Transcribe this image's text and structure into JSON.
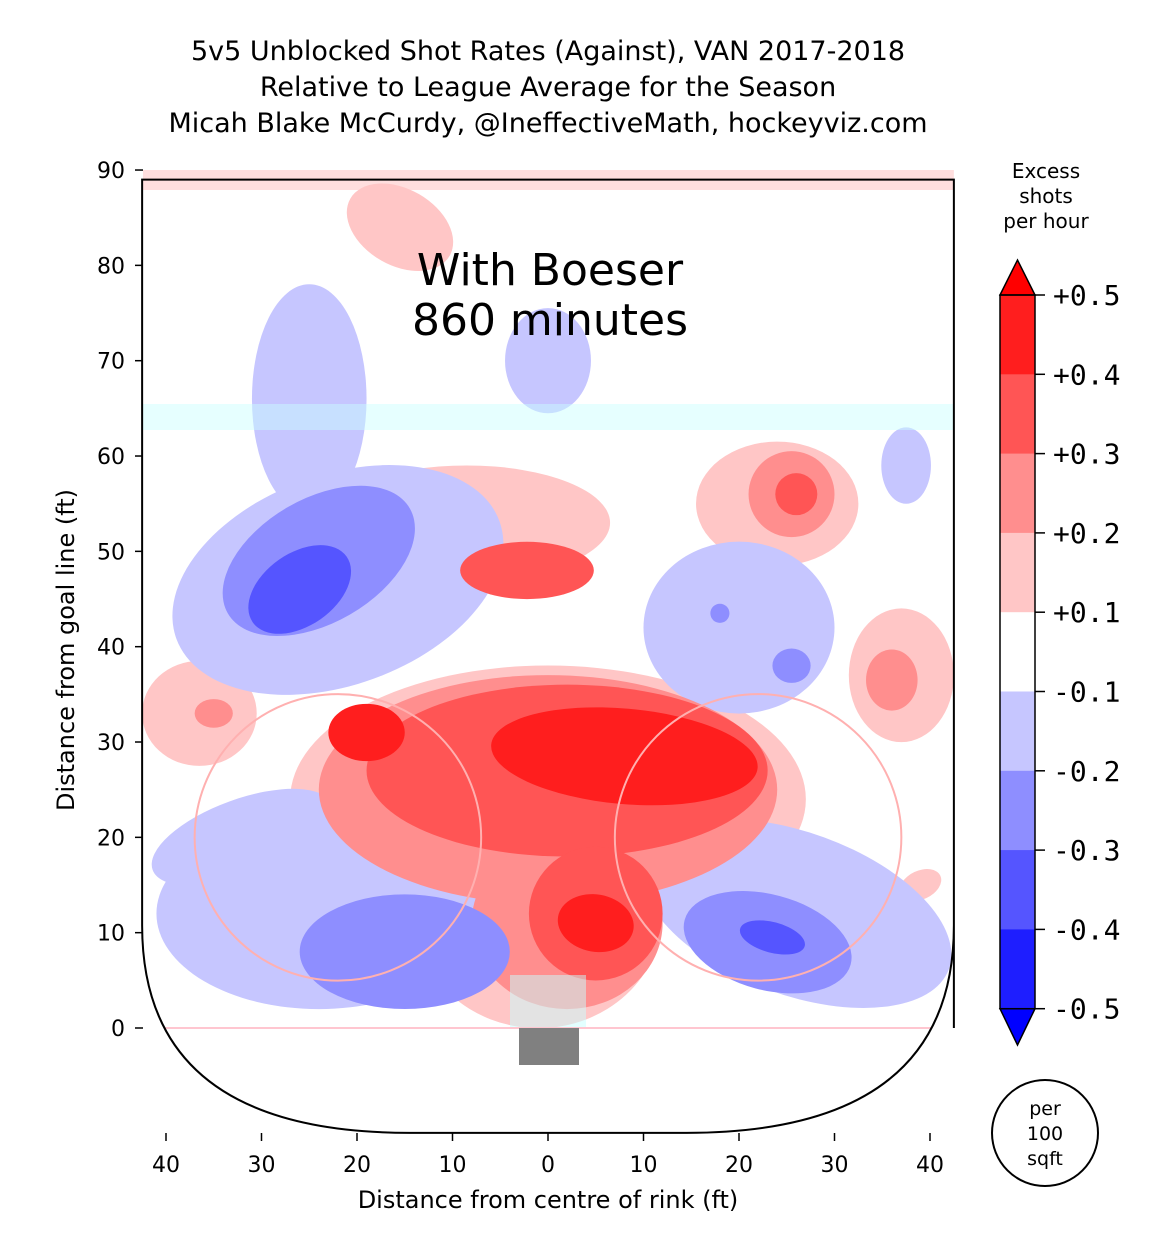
{
  "chart_data": {
    "type": "heatmap",
    "title": [
      "5v5 Unblocked Shot Rates (Against), VAN 2017-2018",
      "Relative to League Average for the Season",
      "Micah Blake McCurdy, @IneffectiveMath, hockeyviz.com"
    ],
    "annotation": [
      "With Boeser",
      "860 minutes"
    ],
    "xlabel": "Distance from centre of rink (ft)",
    "ylabel": "Distance from goal line (ft)",
    "xlim": [
      -42.5,
      42.5
    ],
    "ylim": [
      -11,
      90
    ],
    "xticks": [
      -40,
      -30,
      -20,
      -10,
      0,
      10,
      20,
      30,
      40
    ],
    "xtick_labels": [
      "40",
      "30",
      "20",
      "10",
      "0",
      "10",
      "20",
      "30",
      "40"
    ],
    "yticks": [
      0,
      10,
      20,
      30,
      40,
      50,
      60,
      70,
      80,
      90
    ],
    "colorbar": {
      "title": [
        "Excess",
        "shots",
        "per hour"
      ],
      "ticks": [
        "+0.5",
        "+0.4",
        "+0.3",
        "+0.2",
        "+0.1",
        "-0.1",
        "-0.2",
        "-0.3",
        "-0.4",
        "-0.5"
      ],
      "bands": [
        {
          "level": 0.45,
          "color": "#ff1e1e"
        },
        {
          "level": 0.35,
          "color": "#ff5555"
        },
        {
          "level": 0.25,
          "color": "#ff8e8e"
        },
        {
          "level": 0.15,
          "color": "#ffc6c6"
        },
        {
          "level": 0,
          "color": "#ffffff"
        },
        {
          "level": -0.15,
          "color": "#c6c6ff"
        },
        {
          "level": -0.25,
          "color": "#8e8eff"
        },
        {
          "level": -0.35,
          "color": "#5555ff"
        },
        {
          "level": -0.45,
          "color": "#1e1eff"
        }
      ],
      "extend_high": "#ff0000",
      "extend_low": "#0000ff"
    },
    "unit_badge": [
      "per",
      "100",
      "sqft"
    ],
    "regions": [
      {
        "x": -15.5,
        "y": 84,
        "rx": 6,
        "ry": 4,
        "rot": -30,
        "level": 0.15
      },
      {
        "x": -8.5,
        "y": 53,
        "rx": 15,
        "ry": 6,
        "rot": 0,
        "level": 0.15
      },
      {
        "x": 24,
        "y": 55,
        "rx": 8.5,
        "ry": 6.5,
        "rot": 0,
        "level": 0.15
      },
      {
        "x": 37,
        "y": 37,
        "rx": 5.5,
        "ry": 7,
        "rot": 0,
        "level": 0.15
      },
      {
        "x": -36.5,
        "y": 33,
        "rx": 6,
        "ry": 5.5,
        "rot": 0,
        "level": 0.15
      },
      {
        "x": 0,
        "y": 24,
        "rx": 27,
        "ry": 14,
        "rot": 0,
        "level": 0.15
      },
      {
        "x": -1,
        "y": 12,
        "rx": 13,
        "ry": 12,
        "rot": 0,
        "level": 0.15
      },
      {
        "x": 39,
        "y": 15,
        "rx": 2.3,
        "ry": 1.5,
        "rot": 25,
        "level": 0.15
      },
      {
        "x": -21.8,
        "y": 20,
        "rx": 1,
        "ry": 1,
        "rot": 0,
        "level": 0.15
      },
      {
        "x": 22,
        "y": 20,
        "rx": 1,
        "ry": 1,
        "rot": 0,
        "level": 0.15
      },
      {
        "x": -25,
        "y": 66,
        "rx": 6,
        "ry": 12,
        "rot": 0,
        "level": -0.15
      },
      {
        "x": -22,
        "y": 47,
        "rx": 18,
        "ry": 11,
        "rot": 20,
        "level": -0.15
      },
      {
        "x": 0,
        "y": 70,
        "rx": 4.5,
        "ry": 5.5,
        "rot": 0,
        "level": -0.15
      },
      {
        "x": 37.5,
        "y": 59,
        "rx": 2.6,
        "ry": 4,
        "rot": 0,
        "level": -0.15
      },
      {
        "x": 20,
        "y": 42,
        "rx": 10,
        "ry": 9,
        "rot": 0,
        "level": -0.15
      },
      {
        "x": -24,
        "y": 12,
        "rx": 17,
        "ry": 10,
        "rot": 0,
        "level": -0.15
      },
      {
        "x": -32,
        "y": 20,
        "rx": 10,
        "ry": 4,
        "rot": 20,
        "level": -0.15
      },
      {
        "x": 26,
        "y": 12,
        "rx": 17,
        "ry": 8.5,
        "rot": -20,
        "level": -0.15
      },
      {
        "x": -24,
        "y": 49,
        "rx": 11,
        "ry": 6.5,
        "rot": 30,
        "level": -0.25
      },
      {
        "x": -15,
        "y": 8,
        "rx": 11,
        "ry": 6,
        "rot": 0,
        "level": -0.25
      },
      {
        "x": 23,
        "y": 9,
        "rx": 9,
        "ry": 5,
        "rot": -15,
        "level": -0.25
      },
      {
        "x": 18,
        "y": 43.5,
        "rx": 1,
        "ry": 1,
        "rot": 0,
        "level": -0.25
      },
      {
        "x": 25.5,
        "y": 38,
        "rx": 2,
        "ry": 1.8,
        "rot": 0,
        "level": -0.25
      },
      {
        "x": -26,
        "y": 46,
        "rx": 6,
        "ry": 3.8,
        "rot": 35,
        "level": -0.35
      },
      {
        "x": 23.5,
        "y": 9.5,
        "rx": 3.5,
        "ry": 1.6,
        "rot": -15,
        "level": -0.35
      },
      {
        "x": 0,
        "y": 25,
        "rx": 24,
        "ry": 12,
        "rot": 0,
        "level": 0.25
      },
      {
        "x": 2,
        "y": 11,
        "rx": 10,
        "ry": 9,
        "rot": 0,
        "level": 0.25
      },
      {
        "x": 25.5,
        "y": 56,
        "rx": 4.5,
        "ry": 4.5,
        "rot": 0,
        "level": 0.25
      },
      {
        "x": 36,
        "y": 36.5,
        "rx": 2.7,
        "ry": 3.2,
        "rot": 0,
        "level": 0.25
      },
      {
        "x": -35,
        "y": 33,
        "rx": 2,
        "ry": 1.5,
        "rot": 0,
        "level": 0.25
      },
      {
        "x": 2,
        "y": 27,
        "rx": 21,
        "ry": 9,
        "rot": 0,
        "level": 0.35
      },
      {
        "x": 5,
        "y": 12,
        "rx": 7,
        "ry": 7,
        "rot": 0,
        "level": 0.35
      },
      {
        "x": -2.2,
        "y": 48,
        "rx": 7,
        "ry": 3,
        "rot": 0,
        "level": 0.35
      },
      {
        "x": 26,
        "y": 56,
        "rx": 2.2,
        "ry": 2.2,
        "rot": 0,
        "level": 0.35
      },
      {
        "x": -19,
        "y": 31,
        "rx": 4,
        "ry": 3,
        "rot": 0,
        "level": 0.45
      },
      {
        "x": 8,
        "y": 28.5,
        "rx": 14,
        "ry": 5,
        "rot": -5,
        "level": 0.45
      },
      {
        "x": 5,
        "y": 11,
        "rx": 4,
        "ry": 3,
        "rot": -10,
        "level": 0.45
      }
    ],
    "faceoff_circles": [
      {
        "x": -22,
        "y": 20,
        "r": 15
      },
      {
        "x": 22,
        "y": 20,
        "r": 15
      }
    ]
  }
}
